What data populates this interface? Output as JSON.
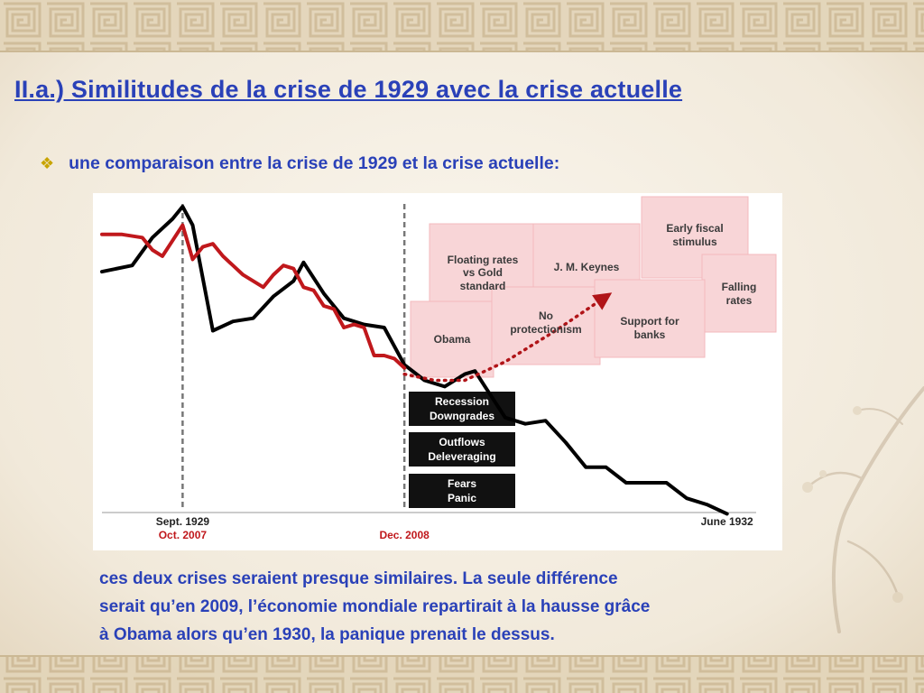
{
  "slide": {
    "title": "II.a.) Similitudes de la crise de 1929 avec la crise actuelle",
    "bullet_icon": "diamond-bullet-icon",
    "bullet_text": "une comparaison entre la crise de 1929 et la crise  actuelle:",
    "conclusion_lines": [
      "ces deux crises seraient presque similaires. La seule différence",
      "serait qu’en 2009, l’économie mondiale repartirait à la hausse grâce",
      "à Obama alors qu’en 1930, la panique prenait le dessus."
    ]
  },
  "colors": {
    "title_text": "#2a41b8",
    "bullet": "#c8a400",
    "series_1929": "#000000",
    "series_2007": "#c0181c",
    "date_red": "#c0181c",
    "pink_box": "#f8d5d7",
    "dark_box": "#111111"
  },
  "chart_data": {
    "type": "line",
    "title": "",
    "xlabel": "",
    "ylabel": "",
    "x_ticks": [
      {
        "x": 8,
        "label_black": "Sept. 1929",
        "label_red": "Oct. 2007"
      },
      {
        "x": 30,
        "label_black": "",
        "label_red": "Dec. 2008"
      },
      {
        "x": 62,
        "label_black": "June 1932",
        "label_red": ""
      }
    ],
    "xlim": [
      0,
      64
    ],
    "ylim": [
      0,
      100
    ],
    "grid": false,
    "series": [
      {
        "name": "",
        "color": "black",
        "x": [
          0,
          3,
          5,
          7,
          8,
          9,
          11,
          13,
          15,
          17,
          19,
          20,
          22,
          24,
          26,
          28,
          30,
          32,
          34,
          36,
          37,
          38,
          40,
          42,
          44,
          46,
          48,
          50,
          52,
          54,
          56,
          58,
          60,
          62
        ],
        "y": [
          77,
          79,
          88,
          94,
          98,
          92,
          58,
          61,
          62,
          69,
          74,
          80,
          70,
          62,
          60,
          59,
          47,
          42,
          40,
          44,
          45,
          40,
          30,
          28,
          29,
          22,
          14,
          14,
          9,
          9,
          9,
          4,
          2,
          -1
        ]
      },
      {
        "name": "",
        "color": "red",
        "x": [
          0,
          1,
          2,
          4,
          5,
          6,
          7,
          8,
          9,
          10,
          11,
          12,
          13,
          14,
          15,
          16,
          17,
          18,
          19,
          20,
          21,
          22,
          23,
          24,
          25,
          26,
          27,
          28,
          29,
          30
        ],
        "y": [
          89,
          89,
          89,
          88,
          84,
          82,
          87,
          92,
          81,
          85,
          86,
          82,
          79,
          76,
          74,
          72,
          76,
          79,
          78,
          72,
          71,
          66,
          65,
          59,
          60,
          59,
          50,
          50,
          49,
          46
        ]
      }
    ],
    "projection": {
      "style": "dotted-arrow",
      "color": "red",
      "x": [
        30,
        33,
        36,
        40,
        45,
        50
      ],
      "y": [
        44,
        42,
        42,
        48,
        58,
        69
      ]
    },
    "annotations": {
      "positive": [
        "Floating rates vs Gold standard",
        "J. M. Keynes",
        "Early fiscal stimulus",
        "Falling rates",
        "Obama",
        "No protectionism",
        "Support for banks"
      ],
      "negative": [
        "Recession Downgrades",
        "Outflows Deleveraging",
        "Fears Panic"
      ]
    }
  }
}
